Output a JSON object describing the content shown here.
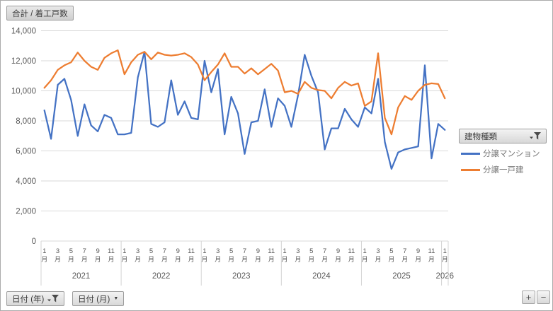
{
  "buttons": {
    "value_field": "合計 / 着工戸数",
    "legend_field": "建物種類",
    "axis_year": "日付 (年)",
    "axis_month": "日付 (月)",
    "expand": "+",
    "collapse": "−"
  },
  "legend": {
    "items": [
      {
        "label": "分譲マンション",
        "color": "#4472C4"
      },
      {
        "label": "分譲一戸建",
        "color": "#ED7D31"
      }
    ]
  },
  "chart_data": {
    "type": "line",
    "title": "合計 / 着工戸数",
    "ylim": [
      0,
      14000
    ],
    "ytick_step": 2000,
    "y_ticks": [
      "0",
      "2,000",
      "4,000",
      "6,000",
      "8,000",
      "10,000",
      "12,000",
      "14,000"
    ],
    "grid": true,
    "legend_position": "right",
    "colors": {
      "gridline": "#D9D9D9",
      "table_line": "#D4D4D4",
      "axis_text": "#595959"
    },
    "month_suffix": "月",
    "labeled_months": [
      1,
      3,
      5,
      7,
      9,
      11
    ],
    "years": [
      {
        "year": "2021",
        "months": 12
      },
      {
        "year": "2022",
        "months": 12
      },
      {
        "year": "2023",
        "months": 12
      },
      {
        "year": "2024",
        "months": 12
      },
      {
        "year": "2025",
        "months": 12
      },
      {
        "year": "2026",
        "months": 1
      }
    ],
    "series": [
      {
        "id": "mansion",
        "name": "分譲マンション",
        "color": "#4472C4",
        "values": [
          8700,
          6800,
          10400,
          10800,
          9400,
          7000,
          9100,
          7700,
          7300,
          8400,
          8200,
          7100,
          7100,
          7200,
          10900,
          12600,
          7800,
          7600,
          7900,
          10700,
          8400,
          9300,
          8200,
          8100,
          12000,
          9900,
          11450,
          7100,
          9600,
          8500,
          5800,
          7900,
          8000,
          10100,
          7600,
          9500,
          9000,
          7600,
          9700,
          12400,
          11000,
          9900,
          6100,
          7500,
          7500,
          8800,
          8100,
          7600,
          8900,
          8500,
          10800,
          6600,
          4800,
          5900,
          6100,
          6200,
          6300,
          11700,
          5500,
          7800,
          7400
        ]
      },
      {
        "id": "ikkodate",
        "name": "分譲一戸建",
        "color": "#ED7D31",
        "values": [
          10200,
          10700,
          11400,
          11700,
          11900,
          12550,
          12000,
          11600,
          11400,
          12200,
          12500,
          12700,
          11100,
          11900,
          12400,
          12600,
          12100,
          12550,
          12400,
          12350,
          12400,
          12500,
          12250,
          11750,
          10700,
          11250,
          11750,
          12500,
          11600,
          11600,
          11150,
          11500,
          11100,
          11450,
          11800,
          11350,
          9900,
          10000,
          9800,
          10600,
          10200,
          10050,
          10000,
          9500,
          10200,
          10600,
          10350,
          10500,
          9000,
          9300,
          12500,
          8200,
          7100,
          8900,
          9650,
          9400,
          10000,
          10400,
          10500,
          10450,
          9500
        ]
      }
    ]
  }
}
